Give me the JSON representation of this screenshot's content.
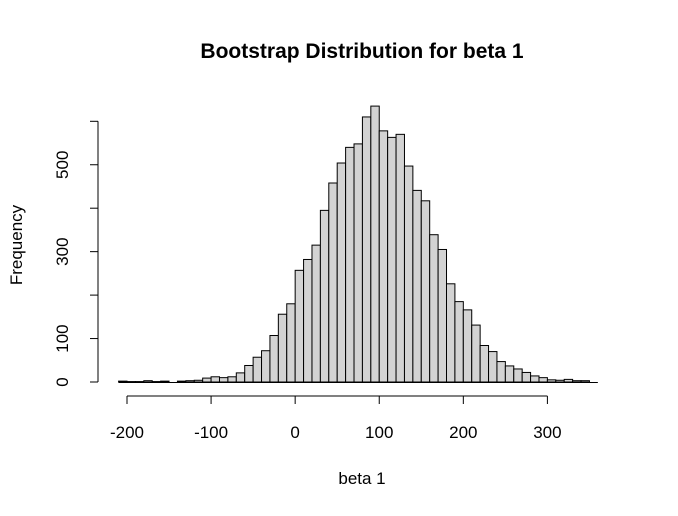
{
  "chart_data": {
    "type": "bar",
    "title": "Bootstrap Distribution for beta 1",
    "xlabel": "beta 1",
    "ylabel": "Frequency",
    "bin_width": 10,
    "bin_start": -210,
    "counts": [
      2,
      1,
      1,
      3,
      1,
      2,
      0,
      2,
      3,
      4,
      9,
      12,
      10,
      12,
      21,
      38,
      57,
      72,
      107,
      156,
      180,
      257,
      282,
      315,
      395,
      458,
      504,
      540,
      548,
      610,
      635,
      578,
      563,
      570,
      497,
      441,
      417,
      339,
      305,
      226,
      185,
      166,
      131,
      84,
      70,
      47,
      37,
      30,
      22,
      14,
      10,
      5,
      4,
      6,
      3,
      3,
      0
    ],
    "x_ticks": [
      -200,
      -100,
      0,
      100,
      200,
      300
    ],
    "x_tick_labels": [
      "-200",
      "-100",
      "0",
      "100",
      "200",
      "300"
    ],
    "y_ticks": [
      0,
      100,
      200,
      300,
      400,
      500,
      600
    ],
    "y_tick_labels": [
      "0",
      "100",
      "",
      "300",
      "",
      "500",
      ""
    ],
    "xlim": [
      -220,
      380
    ],
    "ylim": [
      0,
      600
    ],
    "x_axis_range": [
      -200,
      300
    ],
    "y_axis_range": [
      0,
      600
    ],
    "grid": false
  }
}
